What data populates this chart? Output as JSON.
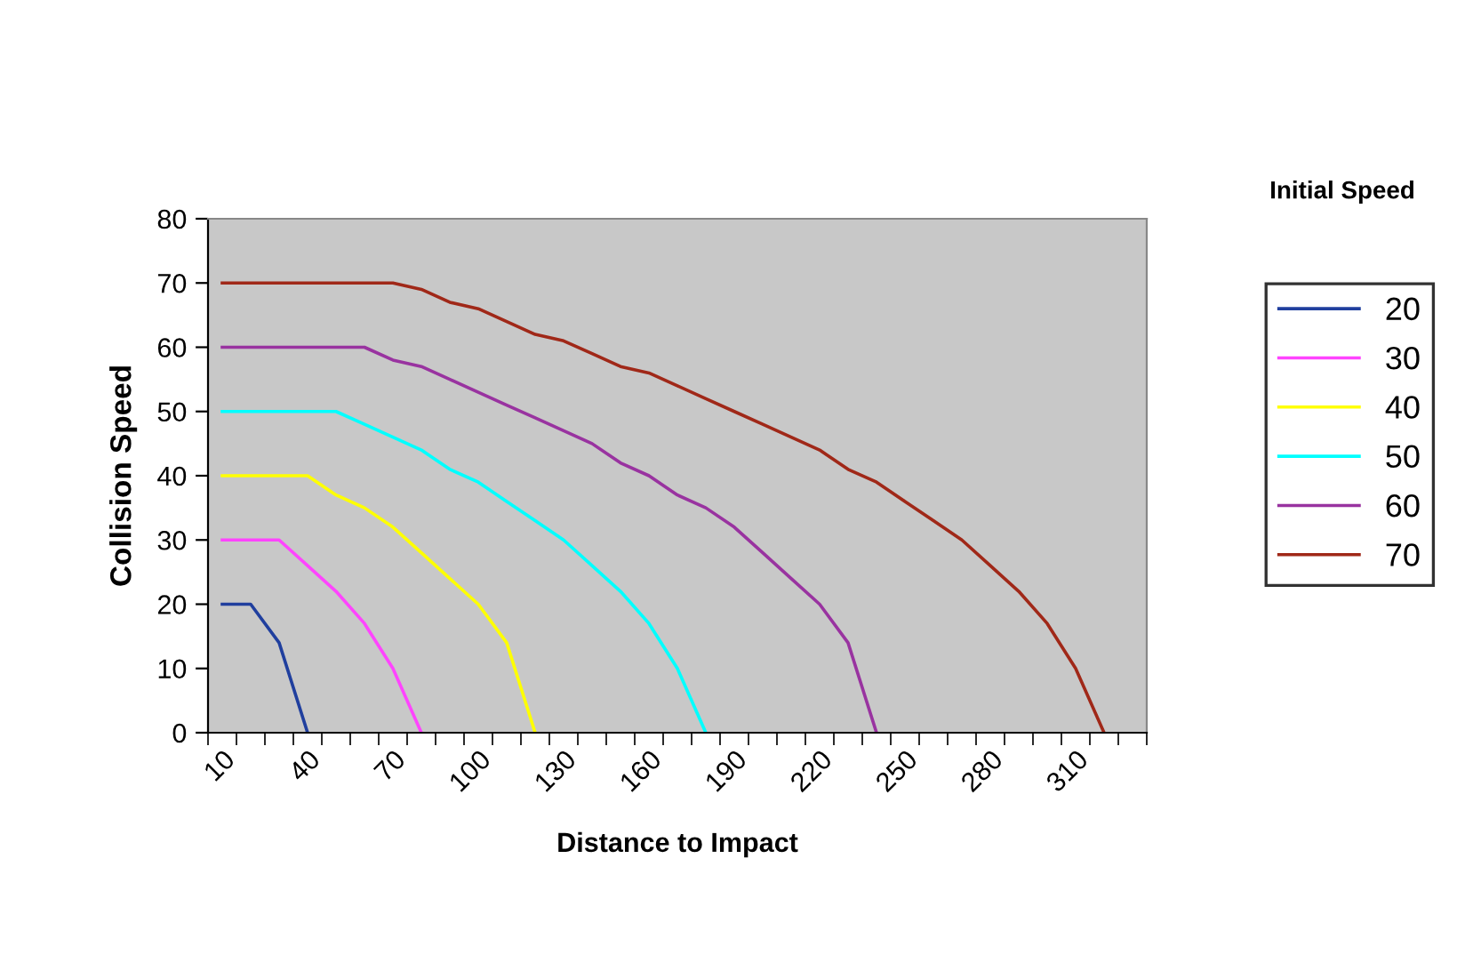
{
  "chart_data": {
    "type": "line",
    "xlabel": "Distance to Impact",
    "ylabel": "Collision Speed",
    "legend_title": "Initial Speed",
    "categories": [
      "10",
      null,
      null,
      "40",
      null,
      null,
      "70",
      null,
      null,
      "100",
      null,
      null,
      "130",
      null,
      null,
      "160",
      null,
      null,
      "190",
      null,
      null,
      "220",
      null,
      null,
      "250",
      null,
      null,
      "280",
      null,
      null,
      "310",
      null,
      null
    ],
    "ylim": [
      0,
      80
    ],
    "yticks": [
      0,
      10,
      20,
      30,
      40,
      50,
      60,
      70,
      80
    ],
    "grid": false,
    "legend": "right",
    "marker": "none",
    "line_style": "solid",
    "series": [
      {
        "name": "20",
        "color": "#203f9e",
        "values": [
          20,
          20,
          14,
          0,
          null,
          null,
          null,
          null,
          null,
          null,
          null,
          null,
          null,
          null,
          null,
          null,
          null,
          null,
          null,
          null,
          null,
          null,
          null,
          null,
          null,
          null,
          null,
          null,
          null,
          null,
          null,
          null,
          null
        ]
      },
      {
        "name": "30",
        "color": "#ff44ff",
        "values": [
          30,
          30,
          30,
          26,
          22,
          17,
          10,
          0,
          null,
          null,
          null,
          null,
          null,
          null,
          null,
          null,
          null,
          null,
          null,
          null,
          null,
          null,
          null,
          null,
          null,
          null,
          null,
          null,
          null,
          null,
          null,
          null,
          null
        ]
      },
      {
        "name": "40",
        "color": "#ffff00",
        "values": [
          40,
          40,
          40,
          40,
          37,
          35,
          32,
          28,
          24,
          20,
          14,
          0,
          null,
          null,
          null,
          null,
          null,
          null,
          null,
          null,
          null,
          null,
          null,
          null,
          null,
          null,
          null,
          null,
          null,
          null,
          null,
          null,
          null
        ]
      },
      {
        "name": "50",
        "color": "#00ffff",
        "values": [
          50,
          50,
          50,
          50,
          50,
          48,
          46,
          44,
          41,
          39,
          36,
          33,
          30,
          26,
          22,
          17,
          10,
          0,
          null,
          null,
          null,
          null,
          null,
          null,
          null,
          null,
          null,
          null,
          null,
          null,
          null,
          null,
          null
        ]
      },
      {
        "name": "60",
        "color": "#9933a0",
        "values": [
          60,
          60,
          60,
          60,
          60,
          60,
          58,
          57,
          55,
          53,
          51,
          49,
          47,
          45,
          42,
          40,
          37,
          35,
          32,
          28,
          24,
          20,
          14,
          0,
          null,
          null,
          null,
          null,
          null,
          null,
          null,
          null,
          null
        ]
      },
      {
        "name": "70",
        "color": "#a02818",
        "values": [
          70,
          70,
          70,
          70,
          70,
          70,
          70,
          69,
          67,
          66,
          64,
          62,
          61,
          59,
          57,
          56,
          54,
          52,
          50,
          48,
          46,
          44,
          41,
          39,
          36,
          33,
          30,
          26,
          22,
          17,
          10,
          0,
          null
        ]
      }
    ]
  }
}
